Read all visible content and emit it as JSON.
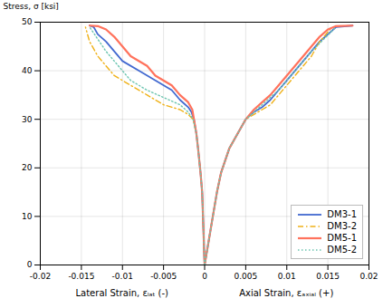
{
  "chart_data": {
    "type": "line",
    "ylabel": "Stress, σ [ksi]",
    "xlabel": [
      "Lateral Strain, εₗₐₜ (-)",
      "Axial Strain, εₐₓᵢₐₗ (+)"
    ],
    "xlim": [
      -0.02,
      0.02
    ],
    "ylim": [
      0,
      50
    ],
    "xticks": [
      -0.02,
      -0.015,
      -0.01,
      -0.005,
      0,
      0.005,
      0.01,
      0.015,
      0.02
    ],
    "yticks": [
      0,
      10,
      20,
      30,
      40,
      50
    ],
    "grid": true,
    "legend": "lower right",
    "series": [
      {
        "name": "DM3-1",
        "line_style": "solid",
        "segments": [
          {
            "x": [
              0,
              0.0002,
              0.0005,
              0.001,
              0.0015,
              0.002,
              0.003,
              0.004,
              0.005,
              0.006,
              0.007,
              0.008,
              0.009,
              0.01,
              0.011,
              0.012,
              0.013,
              0.014,
              0.015,
              0.016,
              0.018
            ],
            "values": [
              0,
              2,
              5,
              10,
              15,
              19,
              24,
              27,
              30,
              31.5,
              32.5,
              34,
              36,
              38,
              40,
              42,
              44,
              46,
              47.5,
              49,
              49.3
            ]
          },
          {
            "x": [
              0,
              -5e-05,
              -0.0001,
              -0.0002,
              -0.0003,
              -0.0005,
              -0.0008,
              -0.001,
              -0.0013,
              -0.0016,
              -0.002,
              -0.003,
              -0.004,
              -0.006,
              -0.008,
              -0.01,
              -0.011,
              -0.012,
              -0.013,
              -0.0135,
              -0.014
            ],
            "values": [
              0,
              2,
              5,
              10,
              15,
              19,
              24,
              27,
              30,
              31.5,
              32.5,
              34,
              36,
              38,
              40,
              42,
              44,
              46,
              47.5,
              49,
              49.3
            ]
          }
        ]
      },
      {
        "name": "DM3-2",
        "line_style": "dashdot",
        "segments": [
          {
            "x": [
              0,
              0.0002,
              0.0005,
              0.001,
              0.0015,
              0.002,
              0.003,
              0.004,
              0.005,
              0.006,
              0.007,
              0.008,
              0.009,
              0.01,
              0.011,
              0.012,
              0.013,
              0.014,
              0.0155
            ],
            "values": [
              0,
              2,
              5,
              10,
              15,
              19,
              24,
              27,
              30,
              31,
              32,
              33,
              35,
              37,
              39,
              41,
              43,
              46,
              49.0
            ]
          },
          {
            "x": [
              0,
              -5e-05,
              -0.0001,
              -0.0002,
              -0.0003,
              -0.0005,
              -0.0008,
              -0.001,
              -0.0014,
              -0.002,
              -0.003,
              -0.005,
              -0.007,
              -0.009,
              -0.011,
              -0.012,
              -0.013,
              -0.014,
              -0.0145
            ],
            "values": [
              0,
              2,
              5,
              10,
              15,
              19,
              24,
              27,
              30,
              31,
              32,
              33,
              35,
              37,
              39,
              41,
              43,
              46,
              49.0
            ]
          }
        ]
      },
      {
        "name": "DM5-1",
        "line_style": "solid",
        "segments": [
          {
            "x": [
              0,
              0.0002,
              0.0005,
              0.001,
              0.0015,
              0.002,
              0.003,
              0.004,
              0.005,
              0.006,
              0.007,
              0.008,
              0.009,
              0.01,
              0.011,
              0.012,
              0.013,
              0.014,
              0.015,
              0.016,
              0.018
            ],
            "values": [
              0,
              2,
              5,
              10,
              15,
              19,
              24,
              27,
              30,
              32,
              33.5,
              35,
              37,
              39,
              41,
              43,
              45,
              47,
              48.5,
              49.2,
              49.3
            ]
          },
          {
            "x": [
              0,
              -5e-05,
              -0.0001,
              -0.0002,
              -0.0003,
              -0.0005,
              -0.0008,
              -0.001,
              -0.0013,
              -0.0015,
              -0.002,
              -0.003,
              -0.004,
              -0.006,
              -0.007,
              -0.009,
              -0.01,
              -0.011,
              -0.012,
              -0.013,
              -0.014
            ],
            "values": [
              0,
              2,
              5,
              10,
              15,
              19,
              24,
              27,
              30,
              32,
              33.5,
              35,
              37,
              39,
              41,
              43,
              45,
              47,
              48.5,
              49.2,
              49.3
            ]
          }
        ]
      },
      {
        "name": "DM5-2",
        "line_style": "dotted",
        "segments": [
          {
            "x": [
              0,
              0.0002,
              0.0005,
              0.001,
              0.0015,
              0.002,
              0.003,
              0.004,
              0.005,
              0.006,
              0.007,
              0.008,
              0.009,
              0.01,
              0.011,
              0.012,
              0.013,
              0.0145,
              0.016
            ],
            "values": [
              0,
              2,
              5,
              10,
              15,
              19,
              24,
              27,
              30,
              31.5,
              33,
              34.5,
              36,
              38,
              40,
              42,
              44,
              46.5,
              49.0
            ]
          },
          {
            "x": [
              0,
              -5e-05,
              -0.0001,
              -0.0002,
              -0.0003,
              -0.0005,
              -0.0008,
              -0.001,
              -0.0014,
              -0.002,
              -0.003,
              -0.005,
              -0.007,
              -0.009,
              -0.01,
              -0.011,
              -0.012,
              -0.013,
              -0.014
            ],
            "values": [
              0,
              2,
              5,
              10,
              15,
              19,
              24,
              27,
              30,
              31.5,
              33,
              34.5,
              36,
              38,
              40,
              42,
              44,
              46.5,
              49.0
            ]
          }
        ]
      }
    ]
  }
}
